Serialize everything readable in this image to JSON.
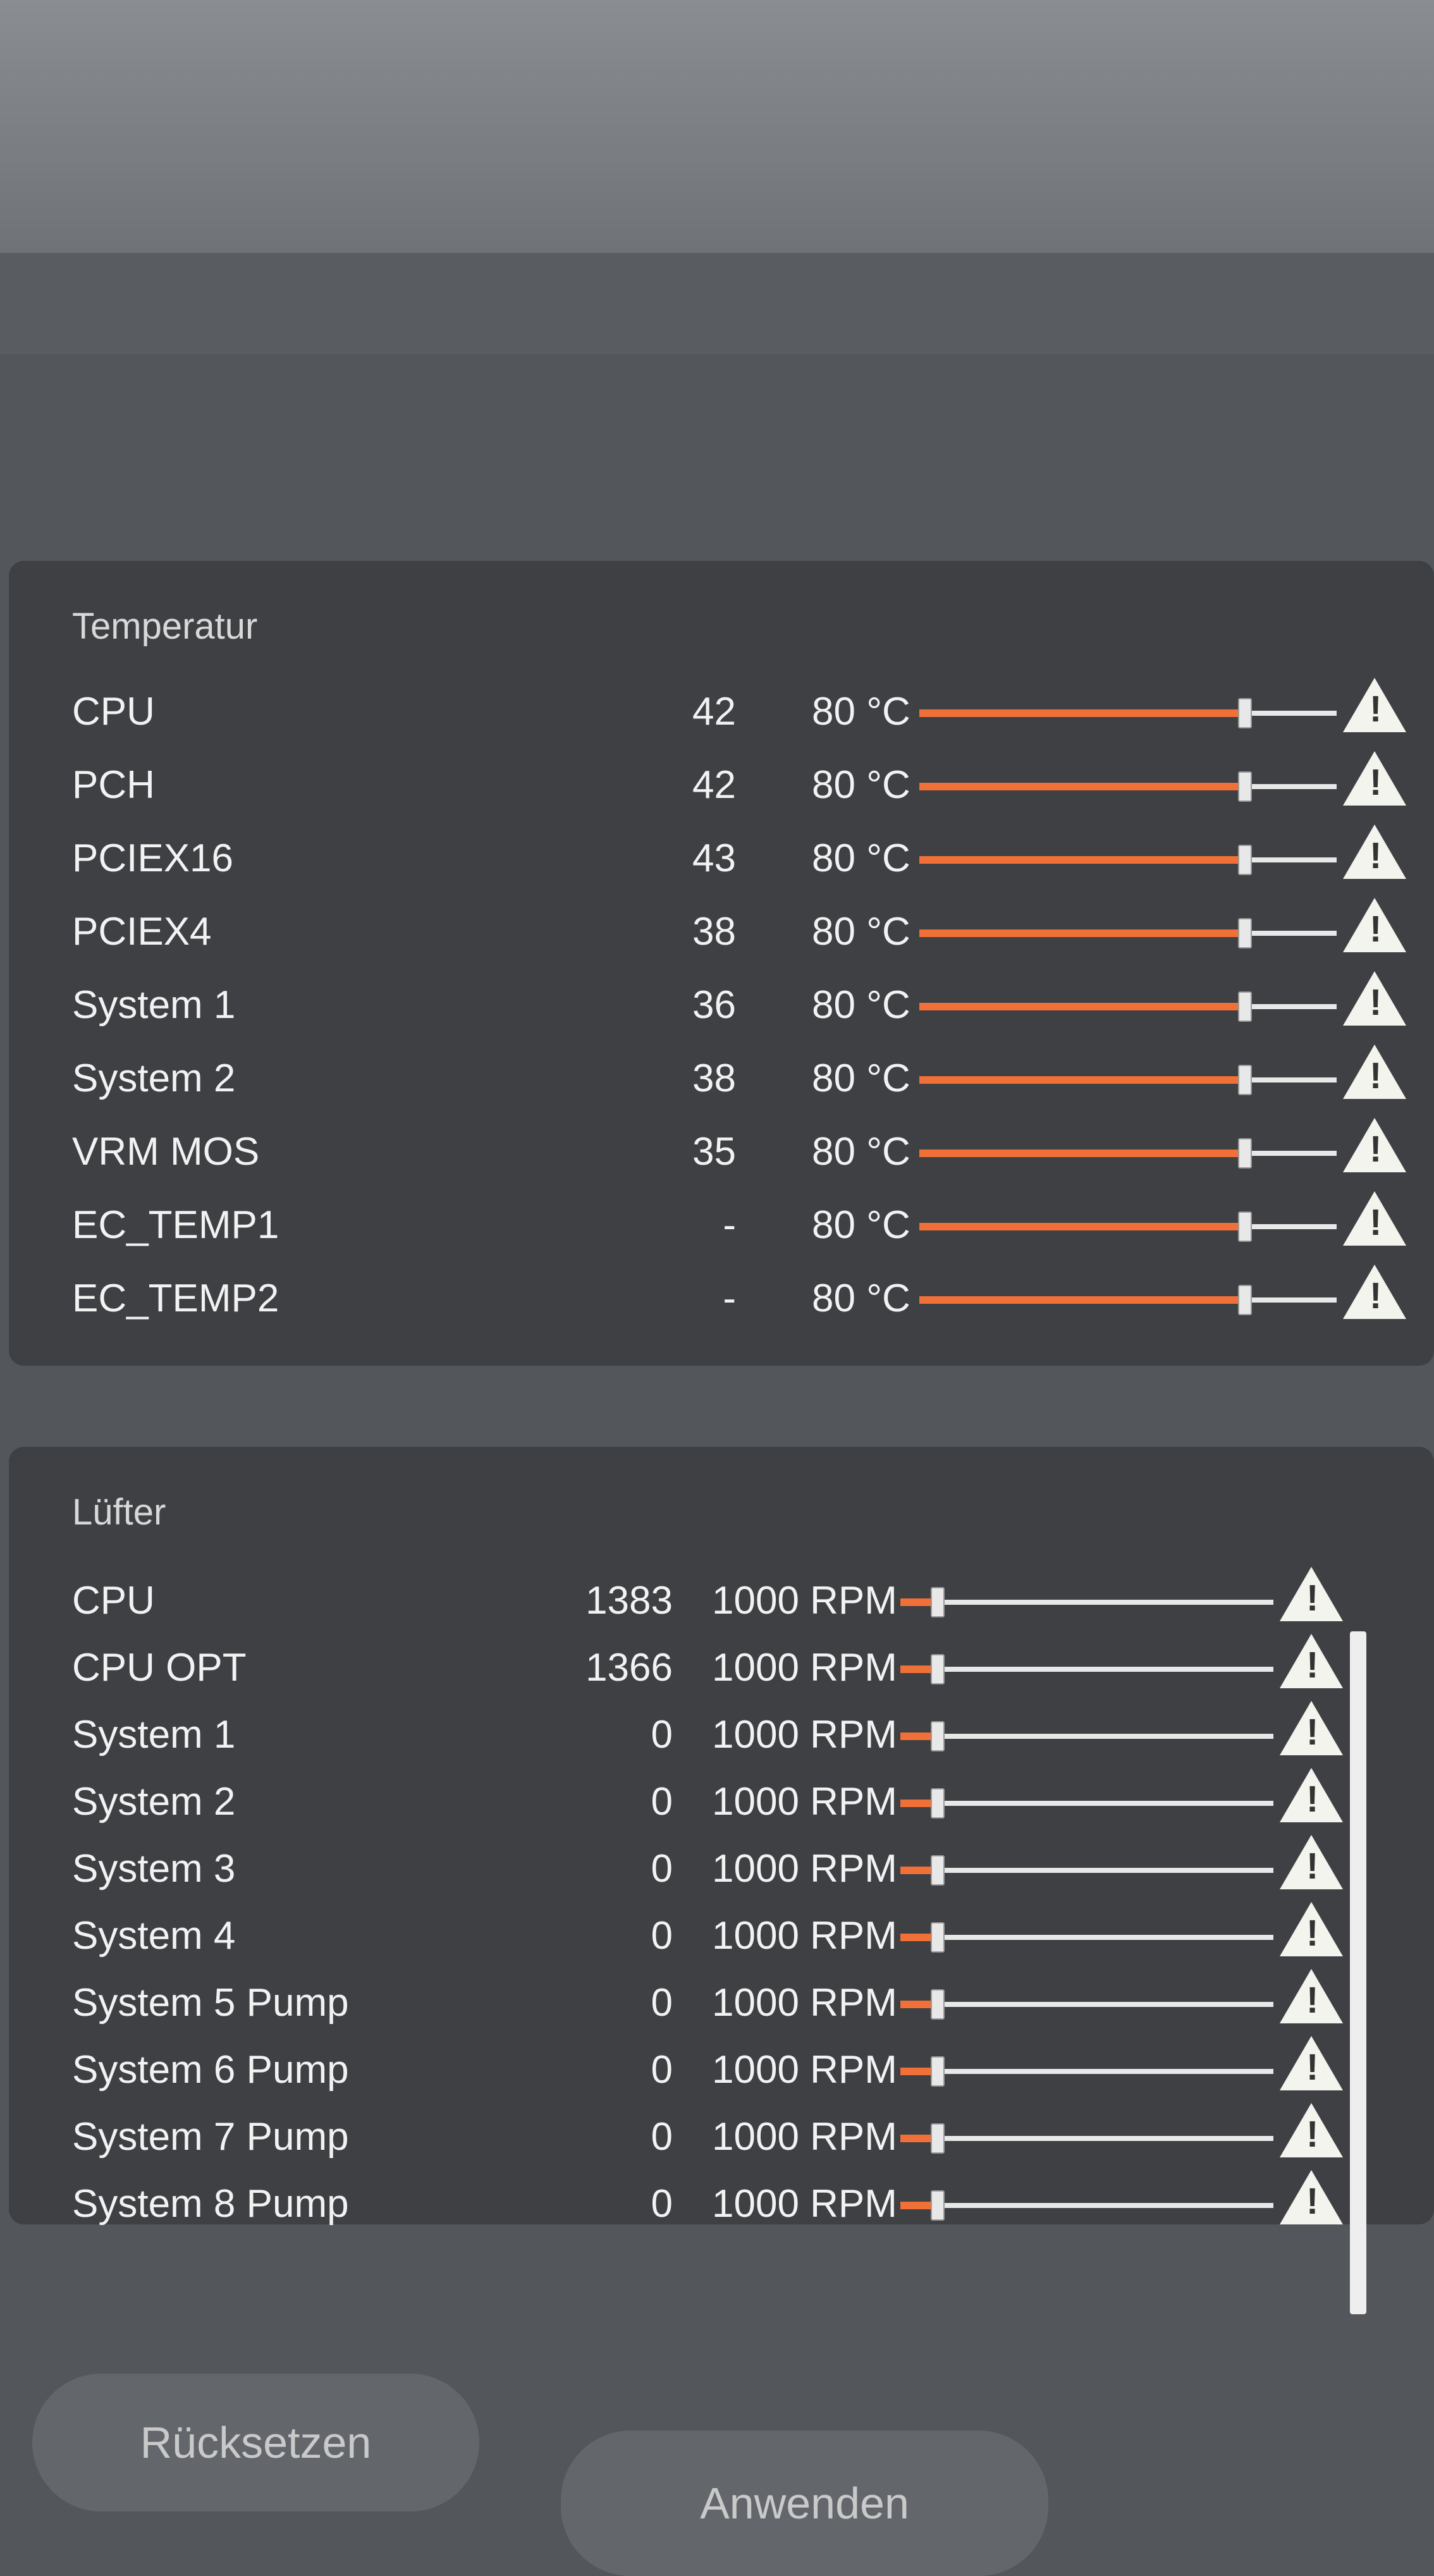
{
  "temperature": {
    "title": "Temperatur",
    "rows": [
      {
        "label": "CPU",
        "value": "42",
        "limit": "80 °C",
        "level": 0.78
      },
      {
        "label": "PCH",
        "value": "42",
        "limit": "80 °C",
        "level": 0.78
      },
      {
        "label": "PCIEX16",
        "value": "43",
        "limit": "80 °C",
        "level": 0.78
      },
      {
        "label": "PCIEX4",
        "value": "38",
        "limit": "80 °C",
        "level": 0.78
      },
      {
        "label": "System 1",
        "value": "36",
        "limit": "80 °C",
        "level": 0.78
      },
      {
        "label": "System 2",
        "value": "38",
        "limit": "80 °C",
        "level": 0.78
      },
      {
        "label": "VRM MOS",
        "value": "35",
        "limit": "80 °C",
        "level": 0.78
      },
      {
        "label": "EC_TEMP1",
        "value": "-",
        "limit": "80 °C",
        "level": 0.78
      },
      {
        "label": "EC_TEMP2",
        "value": "-",
        "limit": "80 °C",
        "level": 0.78
      }
    ]
  },
  "fans": {
    "title": "Lüfter",
    "rows": [
      {
        "label": "CPU",
        "value": "1383",
        "limit": "1000 RPM",
        "level": 0.1
      },
      {
        "label": "CPU OPT",
        "value": "1366",
        "limit": "1000 RPM",
        "level": 0.1
      },
      {
        "label": "System 1",
        "value": "0",
        "limit": "1000 RPM",
        "level": 0.1
      },
      {
        "label": "System 2",
        "value": "0",
        "limit": "1000 RPM",
        "level": 0.1
      },
      {
        "label": "System 3",
        "value": "0",
        "limit": "1000 RPM",
        "level": 0.1
      },
      {
        "label": "System 4",
        "value": "0",
        "limit": "1000 RPM",
        "level": 0.1
      },
      {
        "label": "System 5 Pump",
        "value": "0",
        "limit": "1000 RPM",
        "level": 0.1
      },
      {
        "label": "System 6 Pump",
        "value": "0",
        "limit": "1000 RPM",
        "level": 0.1
      },
      {
        "label": "System 7 Pump",
        "value": "0",
        "limit": "1000 RPM",
        "level": 0.1
      },
      {
        "label": "System 8 Pump",
        "value": "0",
        "limit": "1000 RPM",
        "level": 0.1
      }
    ]
  },
  "buttons": {
    "reset": "Rücksetzen",
    "apply": "Anwenden"
  },
  "colors": {
    "accent": "#f07038",
    "panel": "#3e4044",
    "background": "#53565b"
  },
  "icons": {
    "warning": "warning-triangle-icon"
  }
}
